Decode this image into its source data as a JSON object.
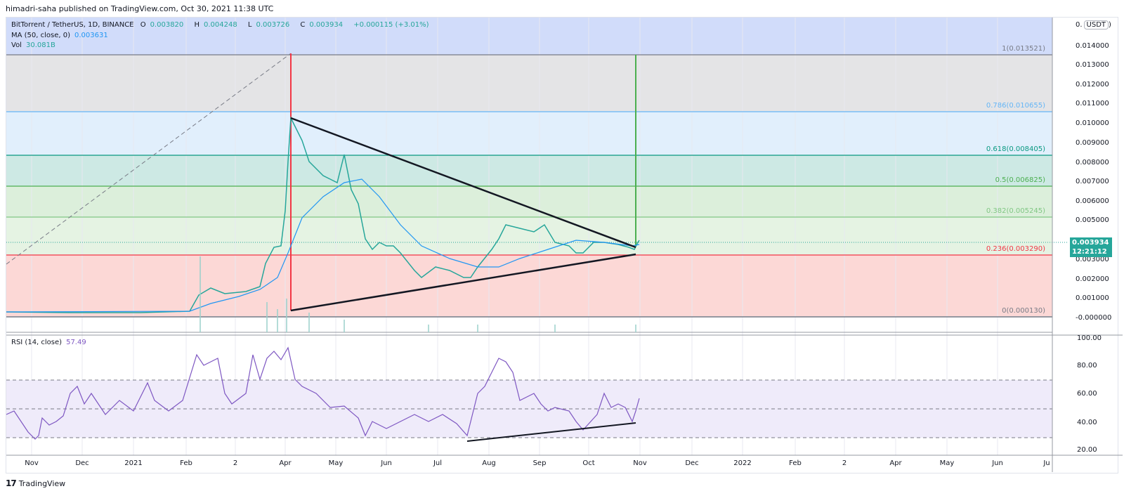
{
  "header": {
    "published": "himadri-saha published on TradingView.com, Oct 30, 2021 11:38 UTC"
  },
  "legend": {
    "symbol": "BitTorrent / TetherUS, 1D, BINANCE",
    "open_label": "O",
    "open": "0.003820",
    "high_label": "H",
    "high": "0.004248",
    "low_label": "L",
    "low": "0.003726",
    "close_label": "C",
    "close": "0.003934",
    "change": "+0.000115 (+3.01%)",
    "ma_label": "MA (50, close, 0)",
    "ma_value": "0.003631",
    "vol_label": "Vol",
    "vol_value": "30.081B"
  },
  "price_axis": {
    "currency": "USDT",
    "ticks": [
      "0.014000",
      "0.013000",
      "0.012000",
      "0.011000",
      "0.010000",
      "0.009000",
      "0.008000",
      "0.007000",
      "0.006000",
      "0.005000",
      "0.003000",
      "0.002000",
      "0.001000",
      "-0.000000"
    ],
    "last_price": "0.003934",
    "countdown": "12:21:12"
  },
  "rsi": {
    "label": "RSI (14, close)",
    "value": "57.49",
    "ticks": [
      "100.00",
      "80.00",
      "60.00",
      "40.00",
      "20.00"
    ]
  },
  "time_axis": {
    "ticks": [
      "Nov",
      "Dec",
      "2021",
      "Feb",
      "2",
      "Apr",
      "May",
      "Jun",
      "Jul",
      "Aug",
      "Sep",
      "Oct",
      "Nov",
      "Dec",
      "2022",
      "Feb",
      "2",
      "Apr",
      "May",
      "Jun",
      "Ju"
    ]
  },
  "fib_levels": [
    {
      "label": "1(0.013521)",
      "color": "#787b86"
    },
    {
      "label": "0.786(0.010655)",
      "color": "#64b5f6"
    },
    {
      "label": "0.618(0.008405)",
      "color": "#089981"
    },
    {
      "label": "0.5(0.006825)",
      "color": "#4caf50"
    },
    {
      "label": "0.382(0.005245)",
      "color": "#81c784"
    },
    {
      "label": "0.236(0.003290)",
      "color": "#f23645"
    },
    {
      "label": "0(0.000130)",
      "color": "#787b86"
    }
  ],
  "footer": {
    "brand": "TradingView",
    "logo_glyph": "17"
  },
  "colors": {
    "up": "#26a69a",
    "down": "#ef5350",
    "ma": "#2196f3",
    "rsi": "#7e57c2"
  },
  "chart_data": {
    "type": "candlestick",
    "title": "BitTorrent / TetherUS, 1D, BINANCE",
    "xlabel": "",
    "ylabel": "USDT",
    "ylim": [
      0,
      0.0145
    ],
    "x": [
      "Nov 2020",
      "Dec 2020",
      "Jan 2021",
      "Feb 2021",
      "Mar 2021",
      "Apr 2021",
      "May 2021",
      "Jun 2021",
      "Jul 2021",
      "Aug 2021",
      "Sep 2021",
      "Oct 2021",
      "Oct 30 2021"
    ],
    "series": [
      {
        "name": "Approx close",
        "values": [
          0.0003,
          0.0003,
          0.0003,
          0.0003,
          0.0013,
          0.008,
          0.006,
          0.003,
          0.0025,
          0.0035,
          0.0045,
          0.0035,
          0.003934
        ]
      },
      {
        "name": "MA 50",
        "values": [
          0.0003,
          0.0003,
          0.0003,
          0.0003,
          0.0012,
          0.0045,
          0.0072,
          0.005,
          0.0028,
          0.0025,
          0.0035,
          0.0037,
          0.003631
        ]
      }
    ],
    "fibonacci": {
      "1": 0.013521,
      "0.786": 0.010655,
      "0.618": 0.008405,
      "0.5": 0.006825,
      "0.382": 0.005245,
      "0.236": 0.00329,
      "0": 0.00013
    },
    "annotations": [
      "Symmetrical triangle from Apr 2021 high to Oct 2021 apex",
      "Green vertical projection line at breakout",
      "RSI rising support trendline Jul–Oct 2021"
    ],
    "rsi": {
      "levels": [
        70,
        50,
        30
      ],
      "ylim": [
        20,
        100
      ],
      "last": 57.49
    },
    "grid": true,
    "legend_position": "top-left"
  }
}
